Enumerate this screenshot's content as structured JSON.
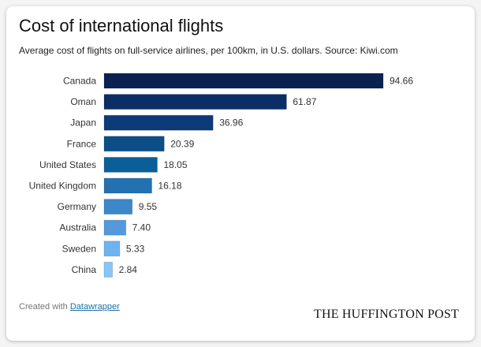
{
  "chart_data": {
    "type": "bar",
    "orientation": "horizontal",
    "title": "Cost of international flights",
    "subtitle": "Average cost of flights on full-service airlines, per 100km, in U.S. dollars. Source: Kiwi.com",
    "categories": [
      "Canada",
      "Oman",
      "Japan",
      "France",
      "United States",
      "United Kingdom",
      "Germany",
      "Australia",
      "Sweden",
      "China"
    ],
    "values": [
      94.66,
      61.87,
      36.96,
      20.39,
      18.05,
      16.18,
      9.55,
      7.4,
      5.33,
      2.84
    ],
    "value_labels": [
      "94.66",
      "61.87",
      "36.96",
      "20.39",
      "18.05",
      "16.18",
      "9.55",
      "7.40",
      "5.33",
      "2.84"
    ],
    "colors": [
      "#0b2150",
      "#0c2e66",
      "#0c3b77",
      "#0b4e88",
      "#0a5f98",
      "#2272b2",
      "#3b87c9",
      "#5399dc",
      "#6db3ef",
      "#86c6f8"
    ],
    "xlim": [
      0,
      94.66
    ],
    "grid": false
  },
  "footer": {
    "credit_prefix": "Created with",
    "credit_link": "Datawrapper",
    "logo": "THE HUFFINGTON POST"
  }
}
